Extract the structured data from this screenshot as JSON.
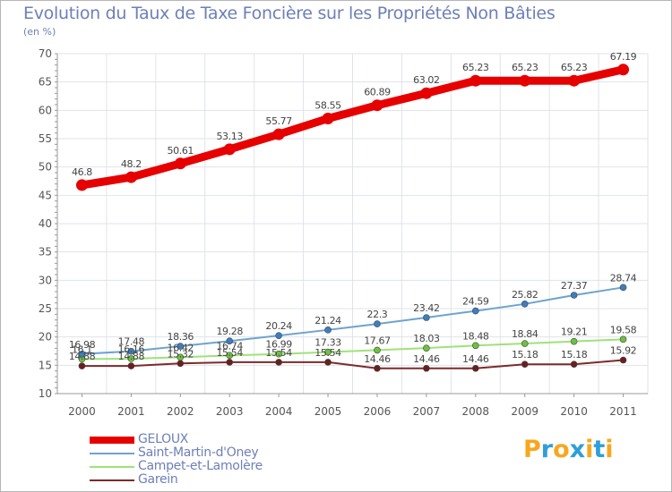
{
  "title": "Evolution du Taux de Taxe Foncière sur les Propriétés Non Bâties",
  "unit_label": "(en %)",
  "logo": {
    "text": "Proxiti",
    "letters": [
      "P",
      "r",
      "o",
      "x",
      "i",
      "t",
      "i"
    ],
    "colors": [
      "#f7a71e",
      "#2f9fd8",
      "#f7a71e",
      "#2f9fd8",
      "#f7a71e",
      "#2f9fd8",
      "#f7a71e"
    ]
  },
  "chart_data": {
    "type": "line",
    "title": "Evolution du Taux de Taxe Foncière sur les Propriétés Non Bâties",
    "ylabel": "(en %)",
    "x": [
      "2000",
      "2001",
      "2002",
      "2003",
      "2004",
      "2005",
      "2006",
      "2007",
      "2008",
      "2009",
      "2010",
      "2011"
    ],
    "ylim": [
      10,
      70
    ],
    "yticks": [
      "10",
      "15",
      "20",
      "25",
      "30",
      "35",
      "40",
      "45",
      "50",
      "55",
      "60",
      "65",
      "70"
    ],
    "grid": true,
    "legend_position": "bottom-left",
    "series": [
      {
        "name": "GELOUX",
        "color": "#e60000",
        "values": [
          46.8,
          48.2,
          50.61,
          53.13,
          55.77,
          58.55,
          60.89,
          63.02,
          65.23,
          65.23,
          65.23,
          67.19
        ],
        "labels": [
          "46.8",
          "48.2",
          "50.61",
          "53.13",
          "55.77",
          "58.55",
          "60.89",
          "63.02",
          "65.23",
          "65.23",
          "65.23",
          "67.19"
        ]
      },
      {
        "name": "Saint-Martin-d'Oney",
        "color": "#6ea3cf",
        "marker": "#3a7fc0",
        "values": [
          16.98,
          17.48,
          18.36,
          19.28,
          20.24,
          21.24,
          22.3,
          23.42,
          24.59,
          25.82,
          27.37,
          28.74
        ],
        "labels": [
          "16.98",
          "17.48",
          "18.36",
          "19.28",
          "20.24",
          "21.24",
          "22.3",
          "23.42",
          "24.59",
          "25.82",
          "27.37",
          "28.74"
        ]
      },
      {
        "name": "Campet-et-Lamolère",
        "color": "#9ee27a",
        "marker": "#6cc23e",
        "values": [
          16.1,
          16.16,
          16.42,
          16.74,
          16.99,
          17.33,
          17.67,
          18.03,
          18.48,
          18.84,
          19.21,
          19.58
        ],
        "labels": [
          "16.1",
          "16.16",
          "16.42",
          "16.74",
          "16.99",
          "17.33",
          "17.67",
          "18.03",
          "18.48",
          "18.84",
          "19.21",
          "19.58"
        ]
      },
      {
        "name": "Garein",
        "color": "#7d2a2a",
        "marker": "#6a1f1f",
        "values": [
          14.88,
          14.88,
          15.32,
          15.54,
          15.54,
          15.54,
          14.46,
          14.46,
          14.46,
          15.18,
          15.18,
          15.92
        ],
        "labels": [
          "14.88",
          "14.88",
          "15.32",
          "15.54",
          "15.54",
          "15.54",
          "14.46",
          "14.46",
          "14.46",
          "15.18",
          "15.18",
          "15.92"
        ]
      }
    ]
  }
}
